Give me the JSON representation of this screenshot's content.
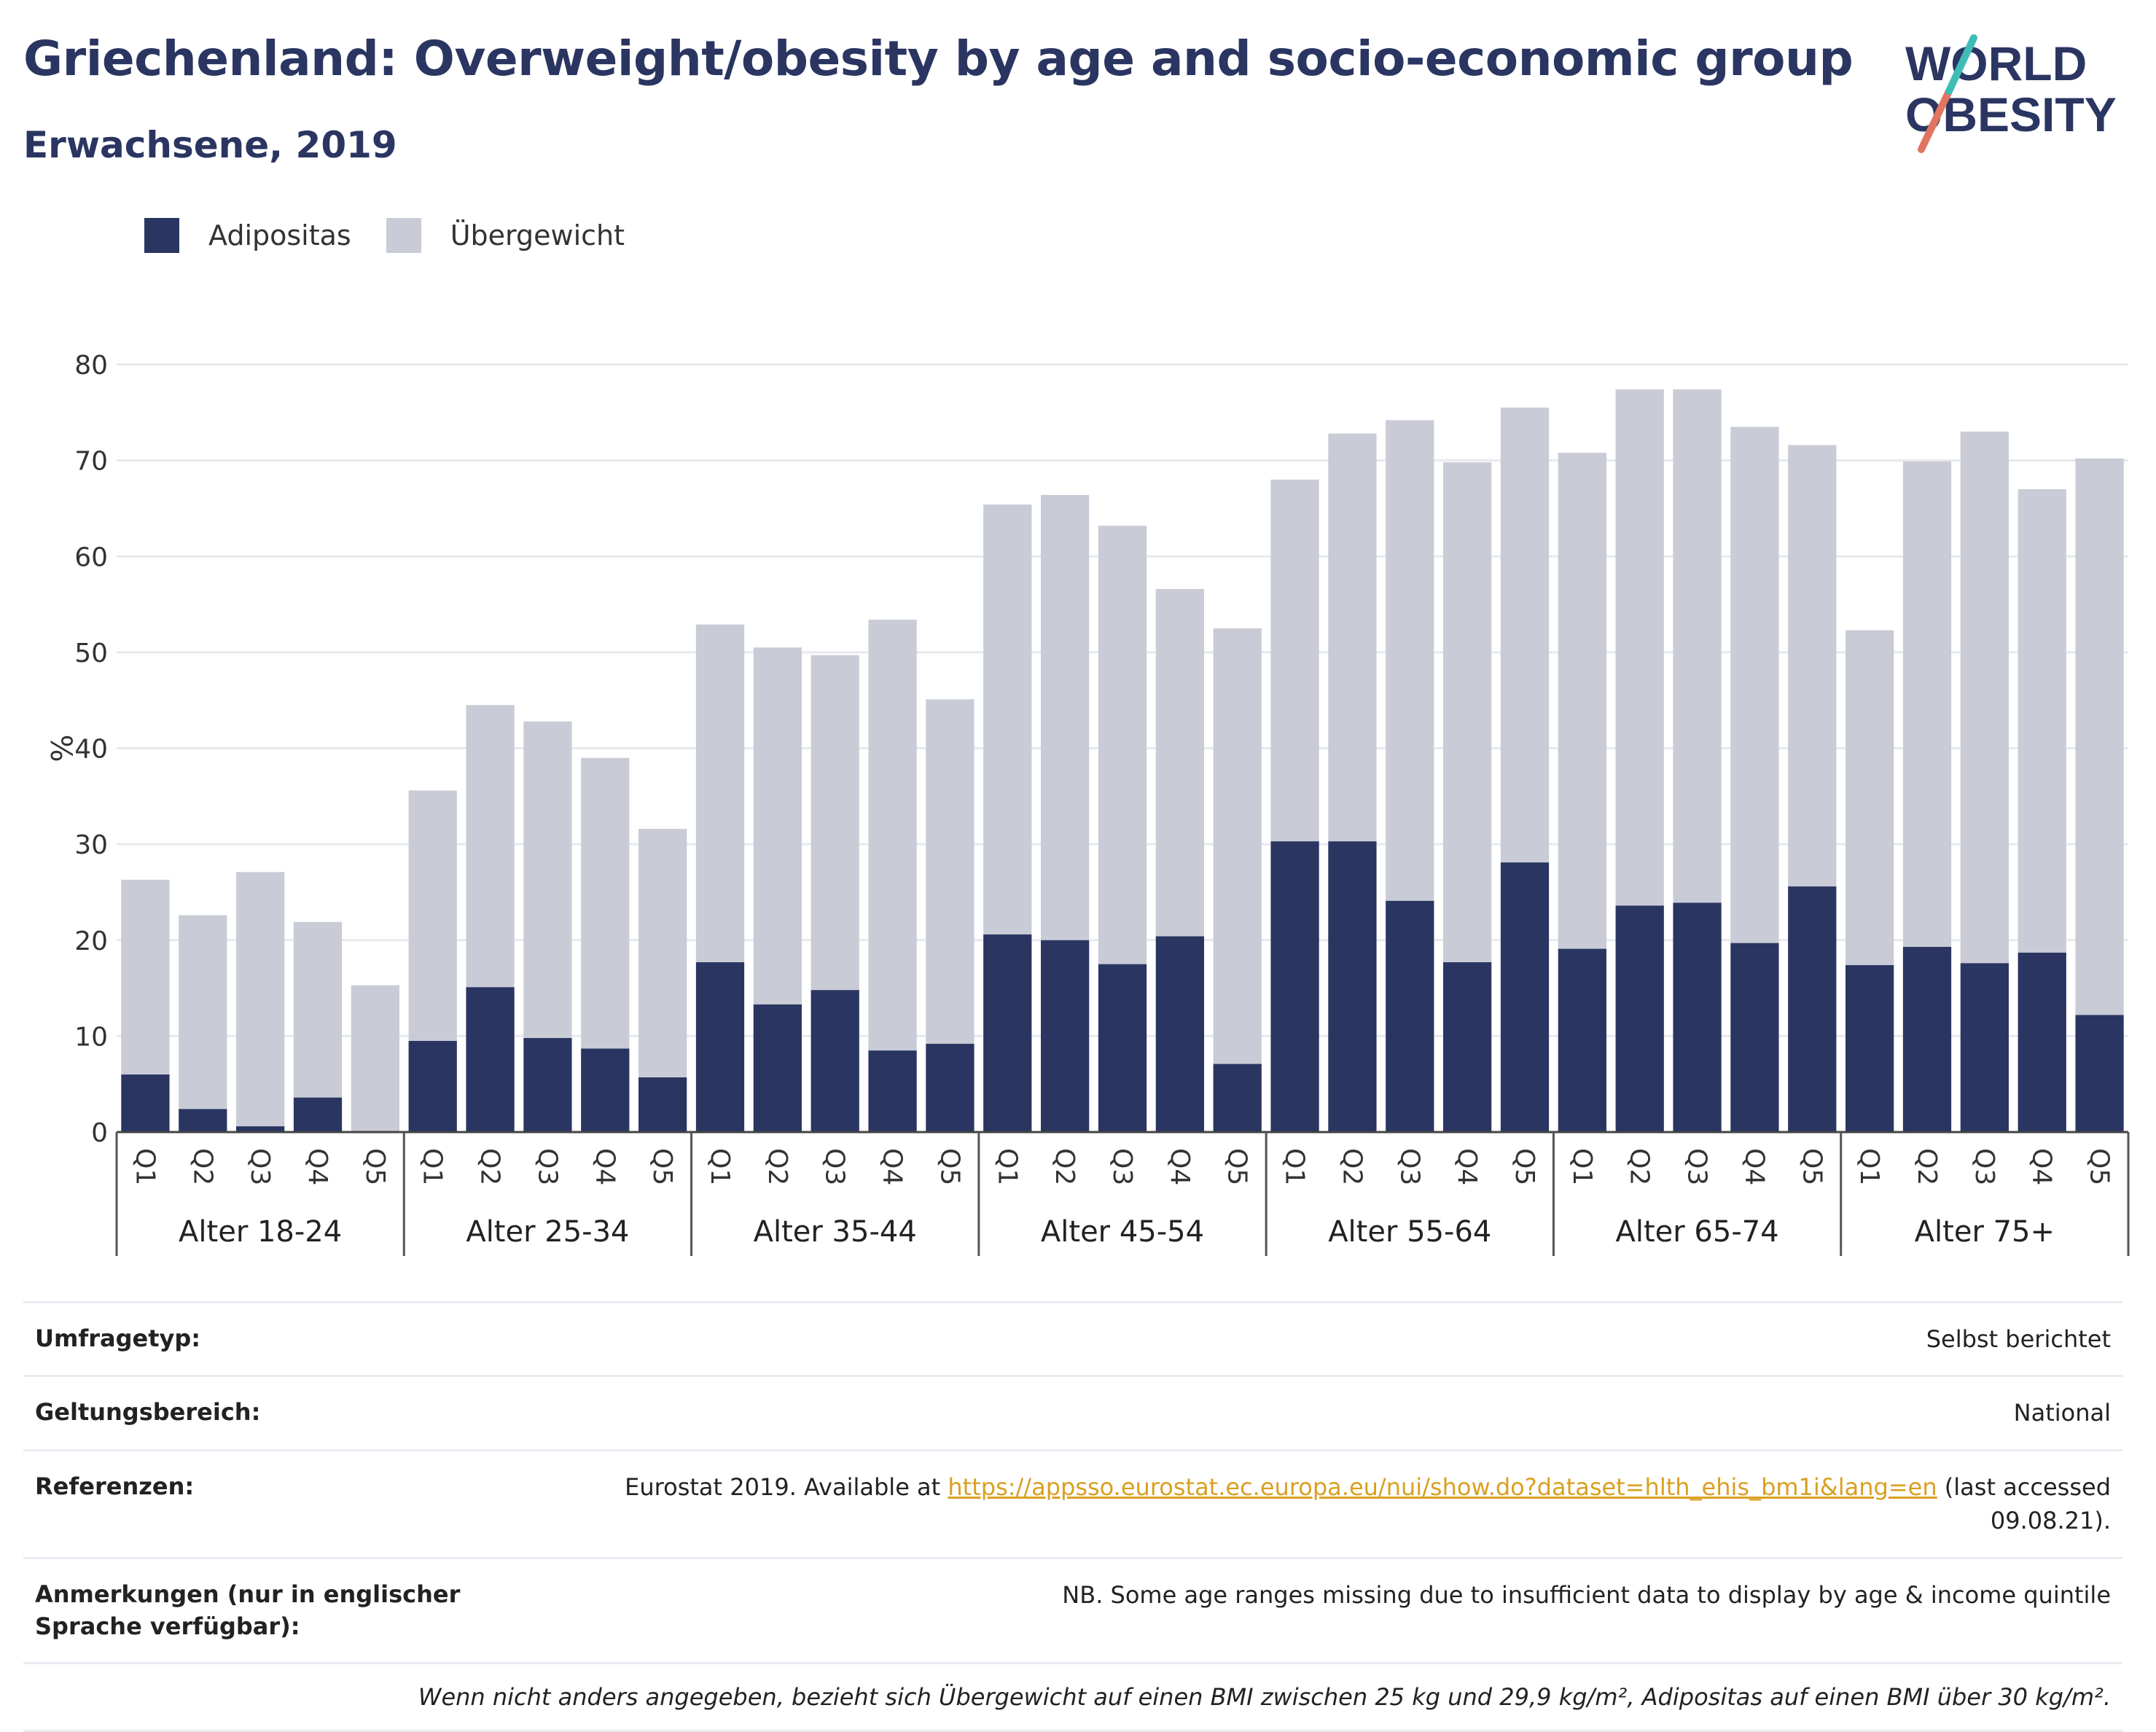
{
  "header": {
    "title": "Griechenland: Overweight/obesity by age and socio-economic group",
    "subtitle": "Erwachsene, 2019"
  },
  "logo": {
    "line1": "WORLD",
    "line2": "OBESITY"
  },
  "legend": [
    {
      "label": "Adipositas",
      "color": "#2a3561"
    },
    {
      "label": "Übergewicht",
      "color": "#c9cbd6"
    }
  ],
  "chart_data": {
    "type": "bar",
    "stacked": true,
    "ylabel": "%",
    "ylim": [
      0,
      80
    ],
    "yticks": [
      0,
      10,
      20,
      30,
      40,
      50,
      60,
      70,
      80
    ],
    "grid": true,
    "legend_position": "top-left",
    "subcategories": [
      "Q1",
      "Q2",
      "Q3",
      "Q4",
      "Q5"
    ],
    "groups": [
      "Alter 18-24",
      "Alter 25-34",
      "Alter 35-44",
      "Alter 45-54",
      "Alter 55-64",
      "Alter 65-74",
      "Alter 75+"
    ],
    "series": [
      {
        "name": "Adipositas",
        "color": "#2a3561",
        "values": [
          6.0,
          2.4,
          0.6,
          3.6,
          0.0,
          9.5,
          15.1,
          9.8,
          8.7,
          5.7,
          17.7,
          13.3,
          14.8,
          8.5,
          9.2,
          20.6,
          20.0,
          17.5,
          20.4,
          7.1,
          30.3,
          30.3,
          24.1,
          17.7,
          28.1,
          19.1,
          23.6,
          23.9,
          19.7,
          25.6,
          17.4,
          19.3,
          17.6,
          18.7,
          12.2
        ]
      },
      {
        "name": "Übergewicht",
        "color": "#c9cbd6",
        "values": [
          20.3,
          20.2,
          26.5,
          18.3,
          15.3,
          26.1,
          29.4,
          33.0,
          30.3,
          25.9,
          35.2,
          37.2,
          34.9,
          44.9,
          35.9,
          44.8,
          46.4,
          45.7,
          36.2,
          45.4,
          37.7,
          42.5,
          50.1,
          52.1,
          47.4,
          51.7,
          53.8,
          53.5,
          53.8,
          46.0,
          34.9,
          50.6,
          55.4,
          48.3,
          58.0
        ]
      }
    ]
  },
  "info": {
    "survey_type_label": "Umfragetyp:",
    "survey_type_value": "Selbst berichtet",
    "scope_label": "Geltungsbereich:",
    "scope_value": "National",
    "references_label": "Referenzen:",
    "references_prefix": "Eurostat 2019. Available at ",
    "references_link": "https://appsso.eurostat.ec.europa.eu/nui/show.do?dataset=hlth_ehis_bm1i&lang=en",
    "references_suffix": " (last accessed 09.08.21).",
    "notes_label": "Anmerkungen (nur in englischer Sprache verfügbar):",
    "notes_value": "NB. Some age ranges missing due to insufficient data to display by age & income quintile",
    "footnote": "Wenn nicht anders angegeben, bezieht sich Übergewicht auf einen BMI zwischen 25 kg und 29,9 kg/m², Adipositas auf einen BMI über 30 kg/m²."
  }
}
